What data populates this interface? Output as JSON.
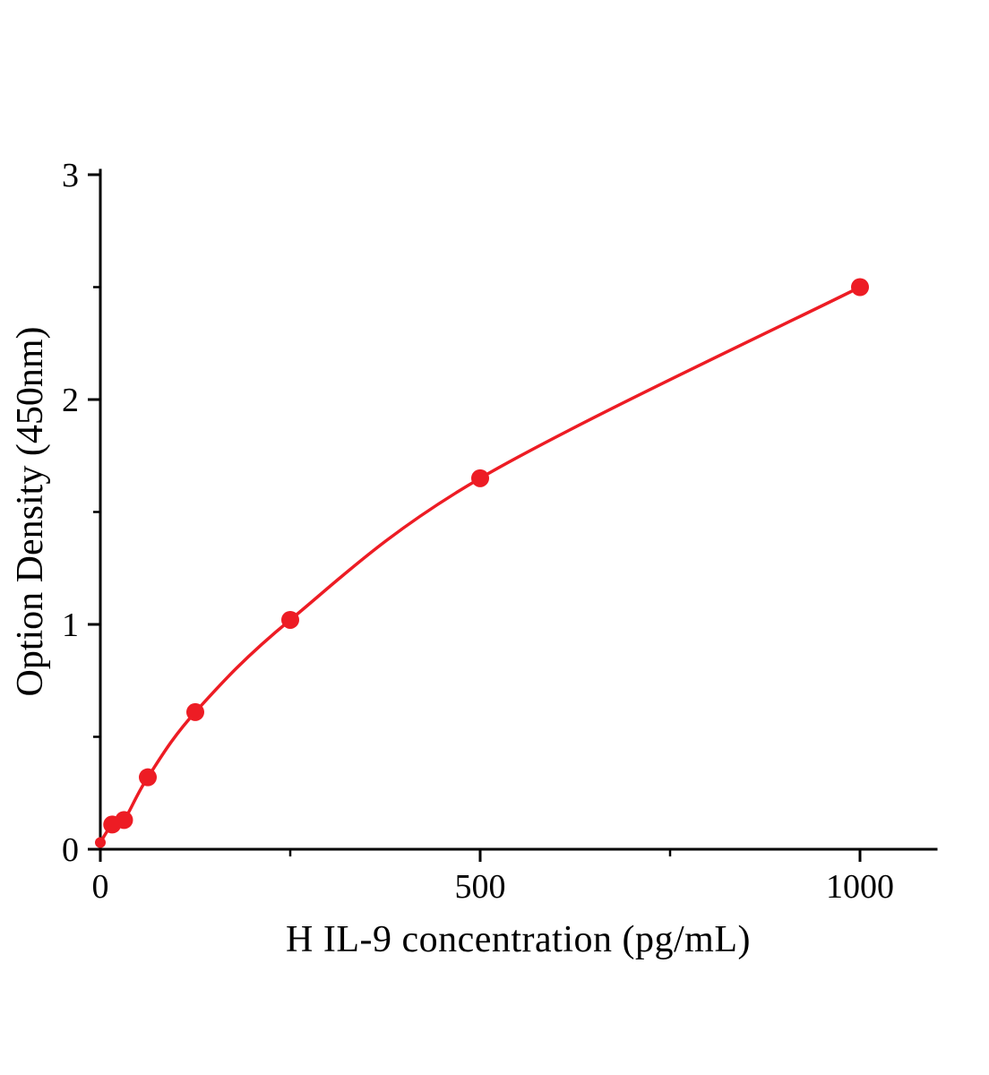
{
  "figure": {
    "background": "#ffffff"
  },
  "chart_data": {
    "type": "line",
    "title": "",
    "xlabel": "H IL-9  concentration (pg/mL)",
    "ylabel": "Option Density (450nm)",
    "x": [
      0,
      15.6,
      31.2,
      62.5,
      125,
      250,
      500,
      1000
    ],
    "y": [
      0.03,
      0.11,
      0.13,
      0.32,
      0.61,
      1.02,
      1.65,
      2.5
    ],
    "xlim": [
      0,
      1100
    ],
    "ylim": [
      0,
      3
    ],
    "x_major_ticks": [
      0,
      500,
      1000
    ],
    "x_minor_ticks": [
      250,
      750
    ],
    "y_major_ticks": [
      0,
      1,
      2,
      3
    ],
    "y_minor_ticks": [
      0.5,
      1.5,
      2.5
    ],
    "grid": false,
    "legend": null,
    "line_color": "#ed1c24",
    "marker_color": "#ed1c24",
    "marker_radius": 10,
    "axis_color": "#000000"
  }
}
